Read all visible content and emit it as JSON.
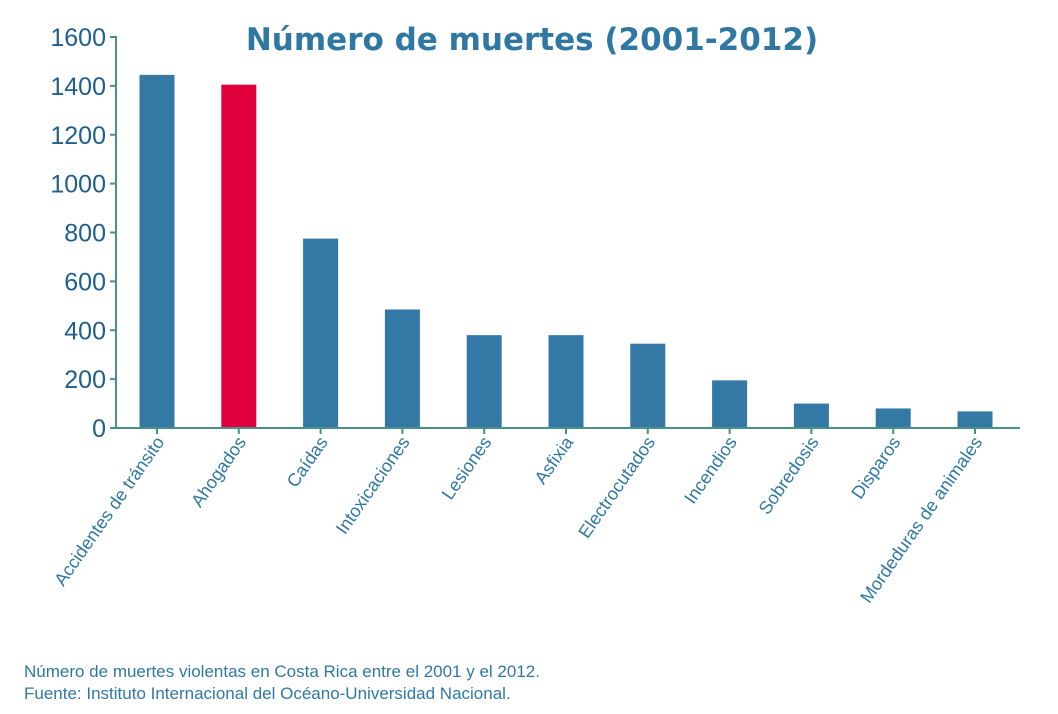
{
  "colors": {
    "bar": "#3478a6",
    "highlight": "#e0003b",
    "axis": "#4a8f8a",
    "text": "#2f78a4"
  },
  "chart_data": {
    "type": "bar",
    "title": "Número de muertes (2001-2012)",
    "xlabel": "",
    "ylabel": "",
    "ylim": [
      0,
      1600
    ],
    "yticks": [
      0,
      200,
      400,
      600,
      800,
      1000,
      1200,
      1400,
      1600
    ],
    "categories": [
      "Accidentes de tránsito",
      "Ahogados",
      "Caídas",
      "Intoxicaciones",
      "Lesiones",
      "Asfixia",
      "Electrocutados",
      "Incendios",
      "Sobredosis",
      "Disparos",
      "Mordeduras de animales"
    ],
    "values": [
      1445,
      1405,
      775,
      485,
      380,
      380,
      345,
      195,
      100,
      80,
      68
    ],
    "highlight_index": 1,
    "grid": false,
    "legend": "none"
  },
  "footer": {
    "line1": "Número de muertes violentas en Costa Rica entre el 2001 y el 2012.",
    "line2": "Fuente: Instituto Internacional del Océano-Universidad Nacional."
  }
}
